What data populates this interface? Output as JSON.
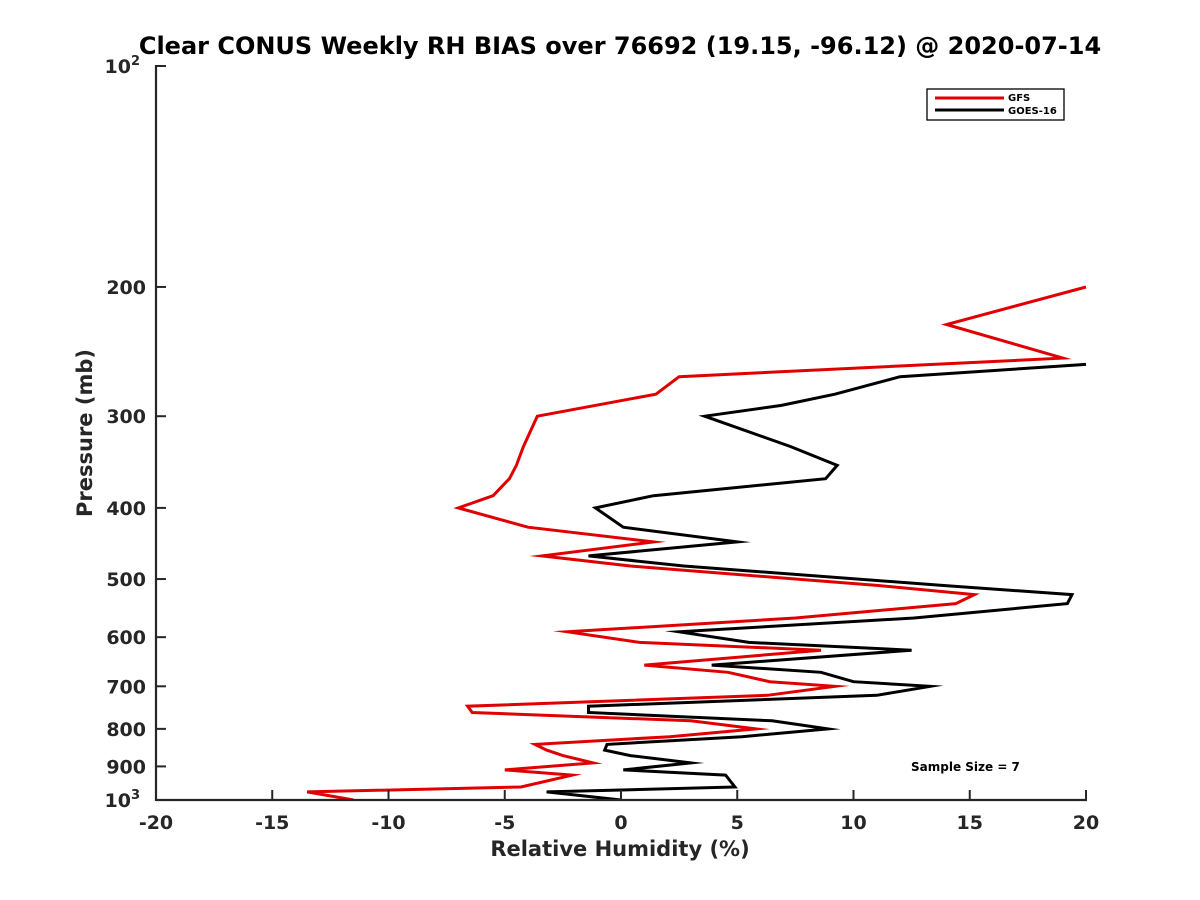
{
  "chart_data": {
    "type": "line",
    "title": "Clear CONUS Weekly RH BIAS over 76692 (19.15, -96.12) @ 2020-07-14",
    "xlabel": "Relative Humidity (%)",
    "ylabel": "Pressure (mb)",
    "xlim": [
      -20,
      20
    ],
    "ylim": [
      100,
      1000
    ],
    "yscale": "log",
    "y_reversed": true,
    "grid": false,
    "legend_position": "top-right",
    "x_ticks": [
      -20,
      -15,
      -10,
      -5,
      0,
      5,
      10,
      15,
      20
    ],
    "x_tick_labels": [
      "-20",
      "-15",
      "-10",
      "-5",
      "0",
      "5",
      "10",
      "15",
      "20"
    ],
    "y_ticks": [
      {
        "value": 100,
        "base": "10",
        "exp": "2"
      },
      {
        "value": 200,
        "label": "200"
      },
      {
        "value": 300,
        "label": "300"
      },
      {
        "value": 400,
        "label": "400"
      },
      {
        "value": 500,
        "label": "500"
      },
      {
        "value": 600,
        "label": "600"
      },
      {
        "value": 700,
        "label": "700"
      },
      {
        "value": 800,
        "label": "800"
      },
      {
        "value": 900,
        "label": "900"
      },
      {
        "value": 1000,
        "base": "10",
        "exp": "3"
      }
    ],
    "annotation": "Sample Size = 7",
    "series": [
      {
        "name": "GFS",
        "color": "#e00000",
        "points": [
          [
            20.0,
            200
          ],
          [
            14.0,
            225
          ],
          [
            19.0,
            250
          ],
          [
            2.5,
            265
          ],
          [
            1.5,
            280
          ],
          [
            -3.6,
            300
          ],
          [
            -4.2,
            330
          ],
          [
            -4.5,
            350
          ],
          [
            -4.8,
            365
          ],
          [
            -5.5,
            385
          ],
          [
            -7.0,
            400
          ],
          [
            -4.0,
            425
          ],
          [
            1.4,
            445
          ],
          [
            -3.4,
            465
          ],
          [
            0.4,
            480
          ],
          [
            11.0,
            510
          ],
          [
            15.2,
            525
          ],
          [
            14.4,
            540
          ],
          [
            7.5,
            565
          ],
          [
            -2.3,
            590
          ],
          [
            0.8,
            610
          ],
          [
            8.6,
            625
          ],
          [
            1.0,
            655
          ],
          [
            4.6,
            670
          ],
          [
            6.4,
            690
          ],
          [
            9.2,
            700
          ],
          [
            6.3,
            720
          ],
          [
            -6.6,
            745
          ],
          [
            -6.4,
            760
          ],
          [
            3.0,
            780
          ],
          [
            5.8,
            800
          ],
          [
            2.1,
            820
          ],
          [
            -3.7,
            840
          ],
          [
            -3.2,
            855
          ],
          [
            -2.5,
            870
          ],
          [
            -1.2,
            890
          ],
          [
            -5.0,
            910
          ],
          [
            -2.1,
            925
          ],
          [
            -4.3,
            960
          ],
          [
            -13.5,
            975
          ],
          [
            -11.5,
            1000
          ]
        ]
      },
      {
        "name": "GOES-16",
        "color": "#000000",
        "points": [
          [
            20.0,
            255
          ],
          [
            12.0,
            265
          ],
          [
            9.2,
            280
          ],
          [
            6.9,
            290
          ],
          [
            3.6,
            300
          ],
          [
            7.3,
            330
          ],
          [
            9.3,
            350
          ],
          [
            8.8,
            365
          ],
          [
            1.4,
            385
          ],
          [
            -1.1,
            400
          ],
          [
            0.1,
            425
          ],
          [
            5.0,
            445
          ],
          [
            -1.4,
            465
          ],
          [
            2.7,
            480
          ],
          [
            13.8,
            510
          ],
          [
            19.4,
            525
          ],
          [
            19.2,
            540
          ],
          [
            12.6,
            565
          ],
          [
            2.5,
            590
          ],
          [
            5.5,
            610
          ],
          [
            12.5,
            625
          ],
          [
            3.9,
            655
          ],
          [
            8.6,
            670
          ],
          [
            10.0,
            690
          ],
          [
            13.3,
            700
          ],
          [
            11.0,
            720
          ],
          [
            -1.4,
            745
          ],
          [
            -1.4,
            760
          ],
          [
            6.5,
            780
          ],
          [
            8.9,
            800
          ],
          [
            5.2,
            820
          ],
          [
            -0.6,
            840
          ],
          [
            -0.7,
            855
          ],
          [
            0.4,
            870
          ],
          [
            3.0,
            890
          ],
          [
            0.1,
            910
          ],
          [
            4.5,
            925
          ],
          [
            4.9,
            960
          ],
          [
            -3.2,
            975
          ],
          [
            0.0,
            1000
          ]
        ]
      }
    ]
  }
}
